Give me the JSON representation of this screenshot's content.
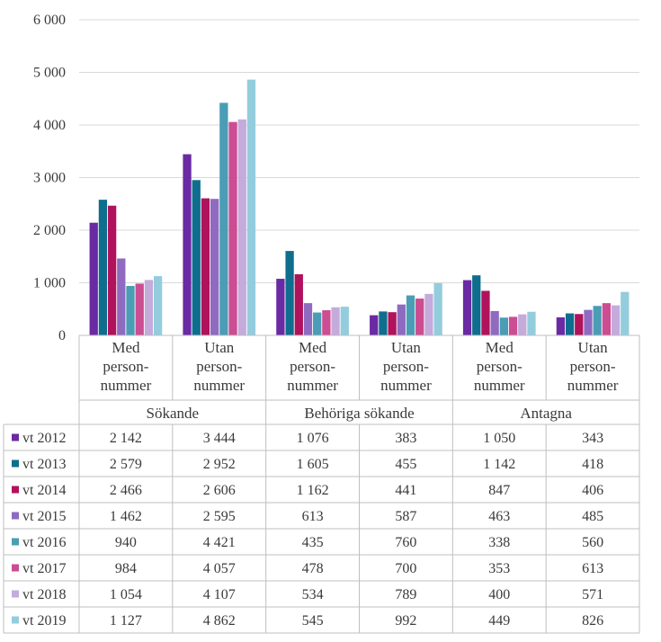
{
  "chart_data": {
    "type": "bar",
    "title": "",
    "xlabel": "",
    "ylabel": "",
    "ylim": [
      0,
      6000
    ],
    "yticks": [
      "0",
      "1 000",
      "2 000",
      "3 000",
      "4 000",
      "5 000",
      "6 000"
    ],
    "grid": true,
    "legend_placement": "table-left",
    "groups": [
      {
        "label": "Sökande",
        "span": 2
      },
      {
        "label": "Behöriga sökande",
        "span": 2
      },
      {
        "label": "Antagna",
        "span": 2
      }
    ],
    "categories": [
      [
        "Med",
        "person-",
        "nummer"
      ],
      [
        "Utan",
        "person-",
        "nummer"
      ],
      [
        "Med",
        "person-",
        "nummer"
      ],
      [
        "Utan",
        "person-",
        "nummer"
      ],
      [
        "Med",
        "person-",
        "nummer"
      ],
      [
        "Utan",
        "person-",
        "nummer"
      ]
    ],
    "series": [
      {
        "name": "vt 2012",
        "color": "#6a2aa3",
        "values": [
          2142,
          3444,
          1076,
          383,
          1050,
          343
        ],
        "labels": [
          "2 142",
          "3 444",
          "1 076",
          "383",
          "1 050",
          "343"
        ]
      },
      {
        "name": "vt 2013",
        "color": "#0f6e8e",
        "values": [
          2579,
          2952,
          1605,
          455,
          1142,
          418
        ],
        "labels": [
          "2 579",
          "2 952",
          "1 605",
          "455",
          "1 142",
          "418"
        ]
      },
      {
        "name": "vt 2014",
        "color": "#b0125b",
        "values": [
          2466,
          2606,
          1162,
          441,
          847,
          406
        ],
        "labels": [
          "2 466",
          "2 606",
          "1 162",
          "441",
          "847",
          "406"
        ]
      },
      {
        "name": "vt 2015",
        "color": "#8e6bc0",
        "values": [
          1462,
          2595,
          613,
          587,
          463,
          485
        ],
        "labels": [
          "1 462",
          "2 595",
          "613",
          "587",
          "463",
          "485"
        ]
      },
      {
        "name": "vt 2016",
        "color": "#4a9db5",
        "values": [
          940,
          4421,
          435,
          760,
          338,
          560
        ],
        "labels": [
          "940",
          "4 421",
          "435",
          "760",
          "338",
          "560"
        ]
      },
      {
        "name": "vt 2017",
        "color": "#cc4d91",
        "values": [
          984,
          4057,
          478,
          700,
          353,
          613
        ],
        "labels": [
          "984",
          "4 057",
          "478",
          "700",
          "353",
          "613"
        ]
      },
      {
        "name": "vt 2018",
        "color": "#c4abdc",
        "values": [
          1054,
          4107,
          534,
          789,
          400,
          571
        ],
        "labels": [
          "1 054",
          "4 107",
          "534",
          "789",
          "400",
          "571"
        ]
      },
      {
        "name": "vt 2019",
        "color": "#93cddd",
        "values": [
          1127,
          4862,
          545,
          992,
          449,
          826
        ],
        "labels": [
          "1 127",
          "4 862",
          "545",
          "992",
          "449",
          "826"
        ]
      }
    ]
  }
}
